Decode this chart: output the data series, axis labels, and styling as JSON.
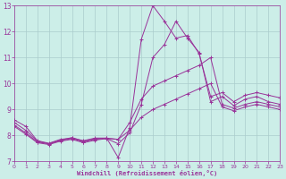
{
  "xlabel": "Windchill (Refroidissement éolien,°C)",
  "bg_color": "#cceee8",
  "line_color": "#993399",
  "grid_color": "#aacccc",
  "xlim": [
    0,
    23
  ],
  "ylim": [
    7,
    13
  ],
  "xticks": [
    0,
    1,
    2,
    3,
    4,
    5,
    6,
    7,
    8,
    9,
    10,
    11,
    12,
    13,
    14,
    15,
    16,
    17,
    18,
    19,
    20,
    21,
    22,
    23
  ],
  "yticks": [
    7,
    8,
    9,
    10,
    11,
    12,
    13
  ],
  "series": [
    {
      "x": [
        0,
        1,
        2,
        3,
        4,
        5,
        6,
        7,
        8,
        9,
        10,
        11,
        12,
        13,
        14,
        15,
        16,
        17,
        18,
        19,
        20,
        21,
        22,
        23
      ],
      "y": [
        8.6,
        8.35,
        7.8,
        7.7,
        7.85,
        7.9,
        7.8,
        7.9,
        7.9,
        7.15,
        8.3,
        11.7,
        13.0,
        12.4,
        11.75,
        11.85,
        11.15,
        9.5,
        9.65,
        9.3,
        9.55,
        9.65,
        9.55,
        9.45
      ]
    },
    {
      "x": [
        0,
        1,
        2,
        3,
        4,
        5,
        6,
        7,
        8,
        9,
        10,
        11,
        12,
        13,
        14,
        15,
        16,
        17,
        18,
        19,
        20,
        21,
        22,
        23
      ],
      "y": [
        8.5,
        8.2,
        7.78,
        7.68,
        7.82,
        7.92,
        7.78,
        7.88,
        7.88,
        7.68,
        8.1,
        9.2,
        11.0,
        11.5,
        12.4,
        11.75,
        11.2,
        9.3,
        9.5,
        9.15,
        9.4,
        9.5,
        9.3,
        9.2
      ]
    },
    {
      "x": [
        0,
        1,
        2,
        3,
        4,
        5,
        6,
        7,
        8,
        9,
        10,
        11,
        12,
        13,
        14,
        15,
        16,
        17,
        18,
        19,
        20,
        21,
        22,
        23
      ],
      "y": [
        8.4,
        8.1,
        7.75,
        7.68,
        7.8,
        7.88,
        7.75,
        7.85,
        7.9,
        7.85,
        8.5,
        9.4,
        9.9,
        10.1,
        10.3,
        10.5,
        10.7,
        11.0,
        9.2,
        9.05,
        9.2,
        9.3,
        9.2,
        9.1
      ]
    },
    {
      "x": [
        0,
        1,
        2,
        3,
        4,
        5,
        6,
        7,
        8,
        9,
        10,
        11,
        12,
        13,
        14,
        15,
        16,
        17,
        18,
        19,
        20,
        21,
        22,
        23
      ],
      "y": [
        8.35,
        8.05,
        7.72,
        7.65,
        7.78,
        7.85,
        7.72,
        7.82,
        7.88,
        7.85,
        8.2,
        8.7,
        9.0,
        9.2,
        9.4,
        9.6,
        9.8,
        10.0,
        9.1,
        8.95,
        9.1,
        9.2,
        9.1,
        9.0
      ]
    }
  ]
}
